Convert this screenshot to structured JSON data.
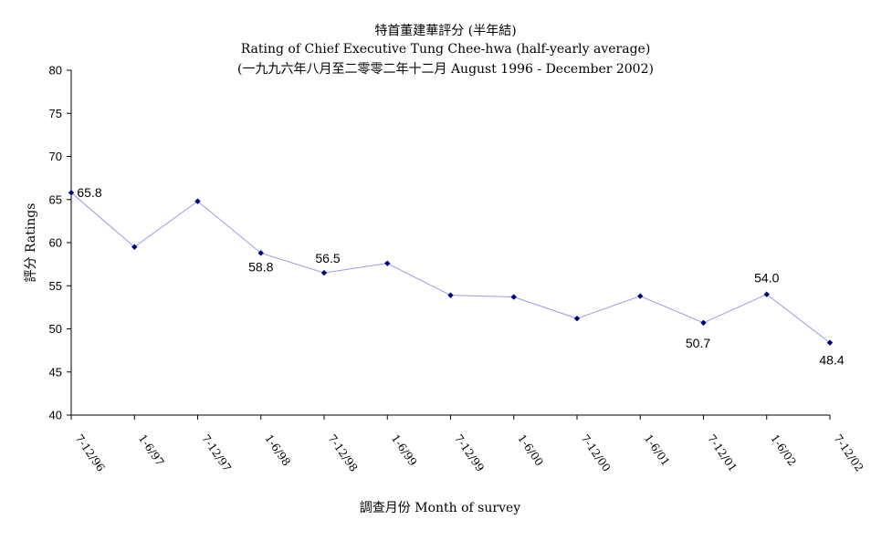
{
  "chart_data": {
    "type": "line",
    "title": "特首董建華評分 (半年結)",
    "subtitle": "Rating of Chief Executive Tung Chee-hwa (half-yearly average)",
    "subtitle2": "(一九九六年八月至二零零二年十二月 August 1996 - December 2002)",
    "xlabel": "調查月份 Month of survey",
    "ylabel": "評分 Ratings",
    "ylim": [
      40,
      80
    ],
    "yticks": [
      "40",
      "45",
      "50",
      "55",
      "60",
      "65",
      "70",
      "75",
      "80"
    ],
    "grid": false,
    "line_color": "#9999ee",
    "marker_color": "#000080",
    "categories": [
      "7-12/96",
      "1-6/97",
      "7-12/97",
      "1-6/98",
      "7-12/98",
      "1-6/99",
      "7-12/99",
      "1-6/00",
      "7-12/00",
      "1-6/01",
      "7-12/01",
      "1-6/02",
      "7-12/02"
    ],
    "values": [
      65.8,
      59.5,
      64.8,
      58.8,
      56.5,
      57.6,
      53.9,
      53.7,
      51.2,
      53.8,
      50.7,
      54.0,
      48.4
    ],
    "data_labels": [
      {
        "index": 0,
        "text": "65.8"
      },
      {
        "index": 3,
        "text": "58.8"
      },
      {
        "index": 4,
        "text": "56.5"
      },
      {
        "index": 10,
        "text": "50.7"
      },
      {
        "index": 11,
        "text": "54.0"
      },
      {
        "index": 12,
        "text": "48.4"
      }
    ]
  }
}
